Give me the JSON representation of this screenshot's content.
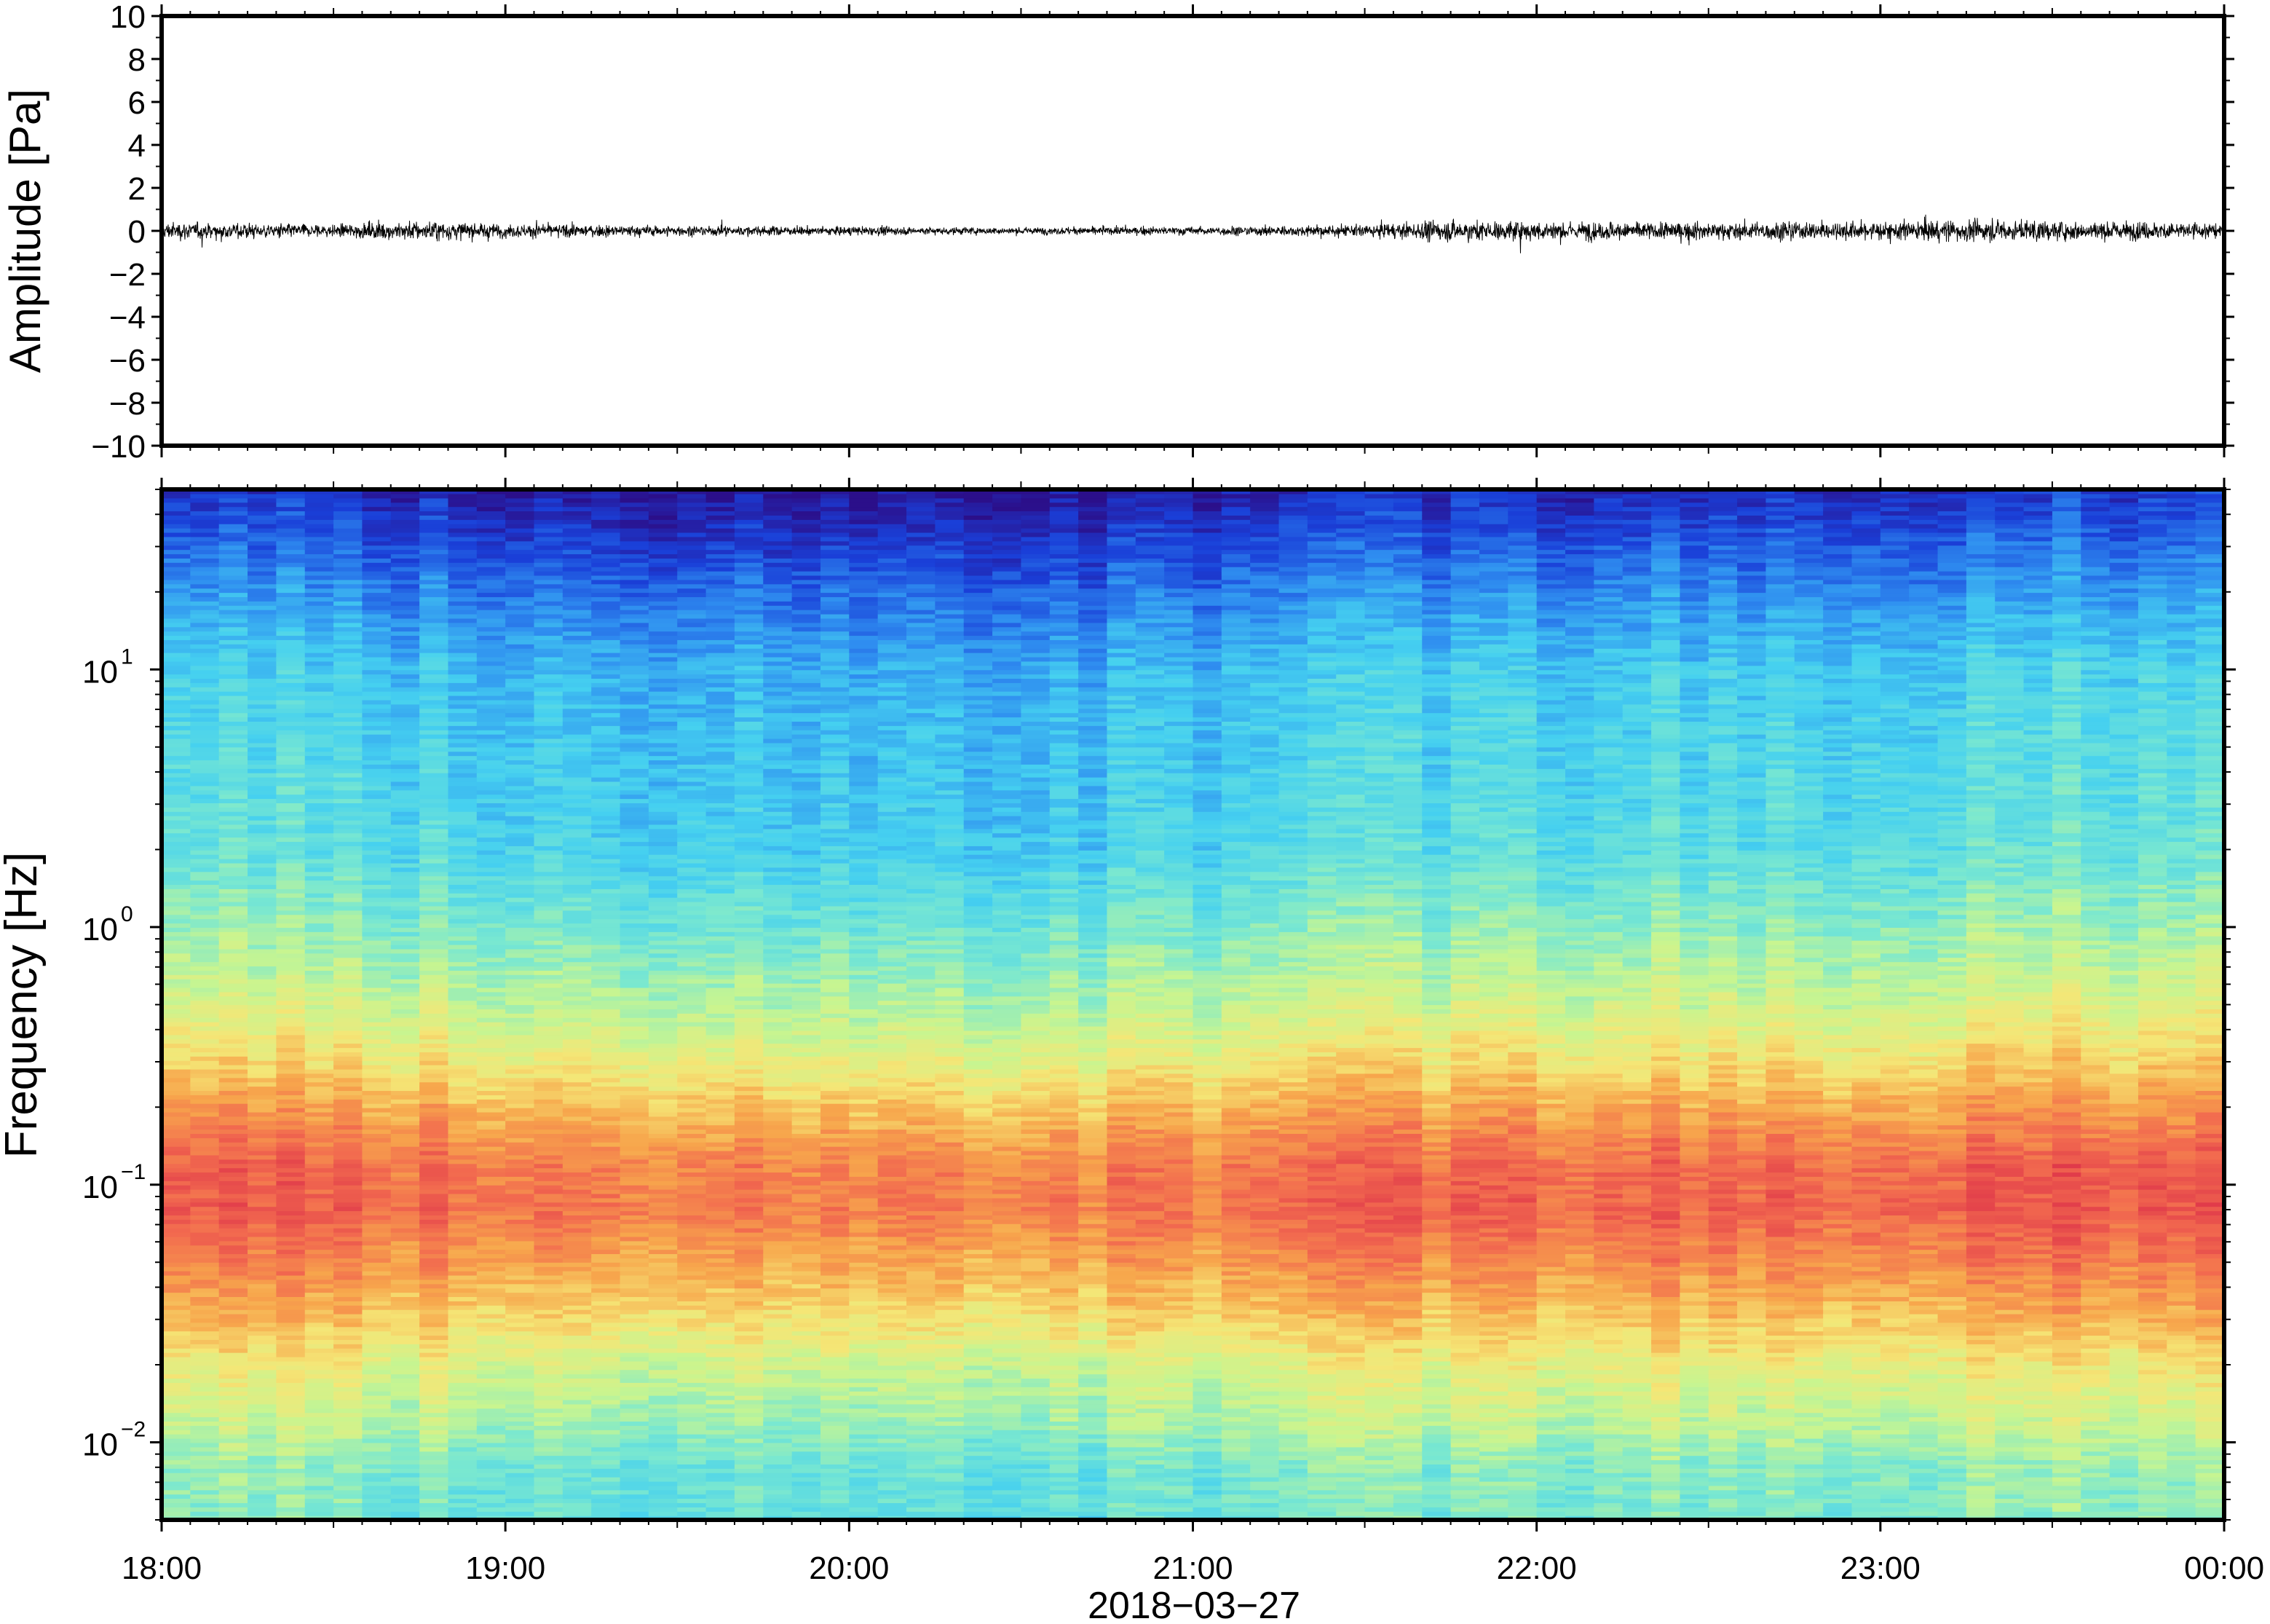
{
  "chart_data": [
    {
      "type": "line",
      "ylabel": "Amplitude [Pa]",
      "ylim": [
        -10,
        10
      ],
      "yticks": [
        10,
        8,
        6,
        4,
        2,
        0,
        -2,
        -4,
        -6,
        -8,
        -10
      ],
      "ytick_labels": [
        "10",
        "8",
        "6",
        "4",
        "2",
        "0",
        "−2",
        "−4",
        "−6",
        "−8",
        "−10"
      ],
      "x_range": [
        "2018-03-27 18:00",
        "2018-03-28 00:00"
      ],
      "series": [
        {
          "color": "#000000",
          "noise_envelope": {
            "x_hours": [
              18.0,
              18.25,
              18.5,
              18.75,
              19.0,
              19.5,
              20.0,
              20.5,
              21.0,
              21.5,
              21.75,
              22.0,
              22.5,
              23.0,
              23.25,
              23.5,
              24.0
            ],
            "amplitude": [
              0.5,
              0.45,
              0.35,
              0.6,
              0.4,
              0.3,
              0.25,
              0.2,
              0.25,
              0.35,
              0.6,
              0.55,
              0.5,
              0.55,
              0.65,
              0.55,
              0.5
            ]
          }
        }
      ]
    },
    {
      "type": "heatmap",
      "ylabel": "Frequency [Hz]",
      "yscale": "log",
      "ylim": [
        0.005,
        50
      ],
      "yticks": [
        0.01,
        0.1,
        1,
        10
      ],
      "ytick_labels": [
        {
          "base": "10",
          "exp": "−2"
        },
        {
          "base": "10",
          "exp": "−1"
        },
        {
          "base": "10",
          "exp": "0"
        },
        {
          "base": "10",
          "exp": "1"
        }
      ],
      "xlabel": "2018−03−27",
      "xticks": [
        "18:00",
        "19:00",
        "20:00",
        "21:00",
        "22:00",
        "23:00",
        "00:00"
      ],
      "colormap": [
        "#2b0f8a",
        "#1a3fd8",
        "#2f8ef0",
        "#45d0f0",
        "#7ae8d0",
        "#c8f590",
        "#f5e676",
        "#f7a64c",
        "#f26a4f",
        "#e0394a"
      ],
      "power_profile": {
        "frequency_hz": [
          0.005,
          0.008,
          0.012,
          0.02,
          0.03,
          0.05,
          0.08,
          0.12,
          0.2,
          0.3,
          0.5,
          1.0,
          2.0,
          5.0,
          10.0,
          20.0,
          35.0,
          50.0
        ],
        "level": [
          0.42,
          0.44,
          0.52,
          0.6,
          0.7,
          0.8,
          0.88,
          0.86,
          0.75,
          0.65,
          0.55,
          0.45,
          0.36,
          0.33,
          0.3,
          0.2,
          0.1,
          0.04
        ]
      },
      "time_variation": {
        "x_hours": [
          18.0,
          18.5,
          19.0,
          19.4,
          19.8,
          20.3,
          20.8,
          21.3,
          21.8,
          22.2,
          22.8,
          23.3,
          23.7,
          24.0
        ],
        "offset": [
          0.05,
          0.04,
          0.0,
          -0.04,
          0.0,
          -0.03,
          -0.02,
          0.0,
          0.04,
          0.03,
          0.02,
          0.05,
          0.06,
          0.05
        ]
      }
    }
  ]
}
